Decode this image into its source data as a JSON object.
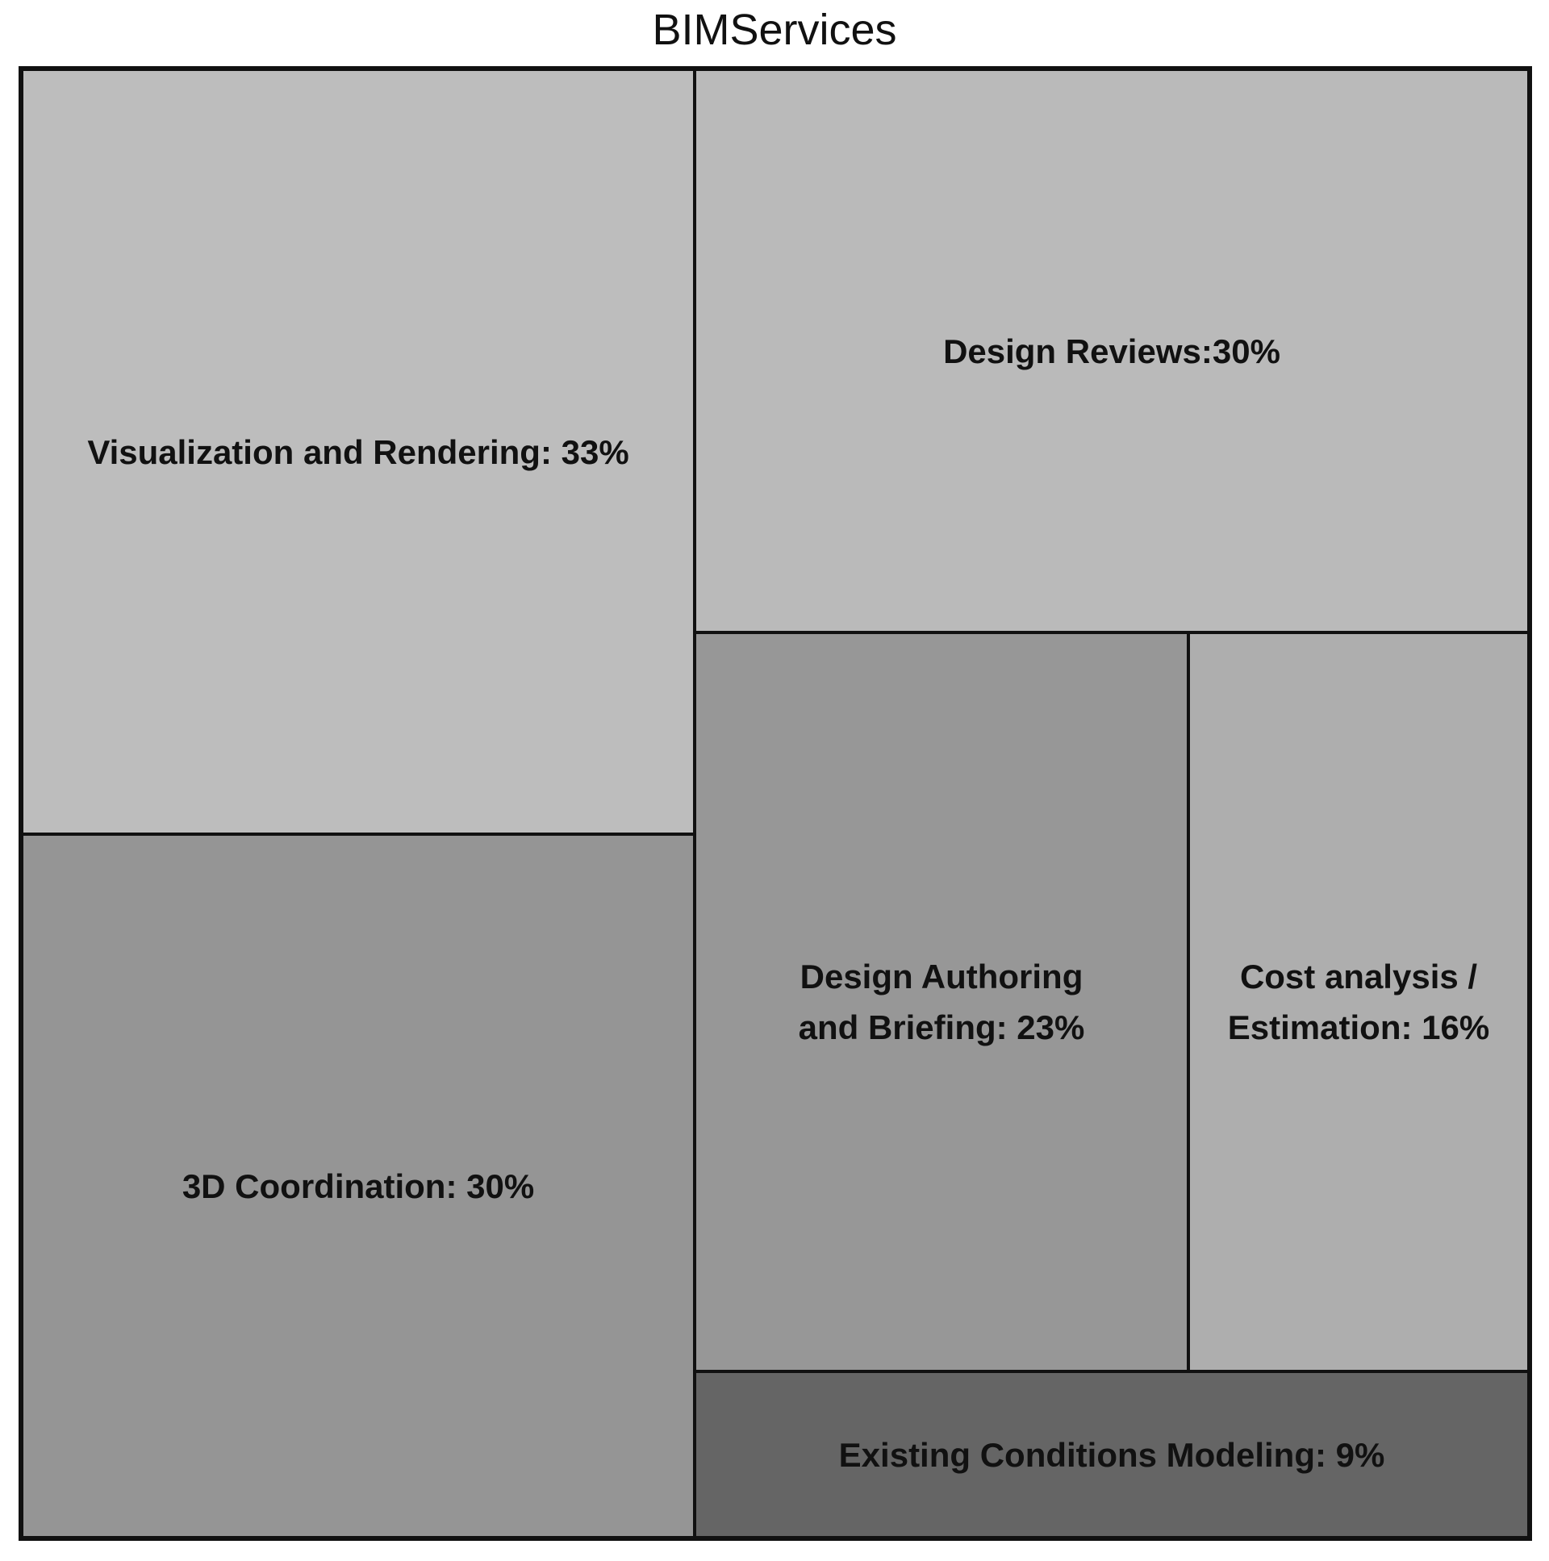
{
  "chart_data": {
    "type": "treemap",
    "title": "BIMServices",
    "items": [
      {
        "label": "Visualization and Rendering: 33%",
        "value": 33,
        "color": "#bdbdbd"
      },
      {
        "label": "3D Coordination: 30%",
        "value": 30,
        "color": "#959595"
      },
      {
        "label": "Design Reviews:30%",
        "value": 30,
        "color": "#bababa"
      },
      {
        "label": "Design Authoring and Briefing: 23%",
        "value": 23,
        "color": "#979797"
      },
      {
        "label": "Cost analysis / Estimation: 16%",
        "value": 16,
        "color": "#aeaeae"
      },
      {
        "label": "Existing Conditions Modeling: 9%",
        "value": 9,
        "color": "#656565"
      }
    ]
  }
}
